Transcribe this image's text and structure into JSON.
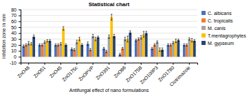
{
  "chart_data": {
    "type": "bar",
    "title": "Statistical chart",
    "x_label": "Antifungal effect of nano formulations",
    "y_label": "inhibition zone in mm",
    "categories": [
      "ZnO48",
      "ZnO51",
      "ZnO45",
      "ZnO175c",
      "ZnOPVP",
      "ZnO391",
      "ZnO86",
      "ZnO175B",
      "ZnO109P3",
      "ZnO1780",
      "Clotrimazole"
    ],
    "series": [
      {
        "name": "C. albicans",
        "color": "#4472C4",
        "values": [
          18,
          20,
          20,
          13,
          22,
          14,
          4,
          28,
          14,
          20,
          20
        ],
        "errors": [
          2,
          2,
          2,
          2,
          3,
          2,
          2,
          2,
          2,
          2,
          2
        ]
      },
      {
        "name": "C. tropicalis",
        "color": "#ED7D31",
        "values": [
          20,
          20,
          20,
          12,
          12,
          9,
          14,
          30,
          20,
          20,
          20
        ],
        "errors": [
          2,
          2,
          2,
          2,
          2,
          2,
          2,
          2,
          2,
          2,
          2
        ]
      },
      {
        "name": "M. canis",
        "color": "#A5A5A5",
        "values": [
          23,
          25,
          22,
          25,
          35,
          34,
          30,
          33,
          25,
          24,
          30
        ],
        "errors": [
          3,
          2,
          2,
          3,
          3,
          3,
          3,
          3,
          2,
          2,
          2
        ]
      },
      {
        "name": "T.mentagrophytes",
        "color": "#FFC000",
        "values": [
          22,
          27,
          48,
          30,
          30,
          67,
          30,
          38,
          12,
          27,
          28
        ],
        "errors": [
          2,
          2,
          3,
          3,
          3,
          5,
          5,
          5,
          3,
          3,
          3
        ]
      },
      {
        "name": "M. gypseum",
        "color": "#264478",
        "values": [
          34,
          27,
          20,
          20,
          33,
          35,
          41,
          40,
          12,
          28,
          27
        ],
        "errors": [
          3,
          2,
          2,
          2,
          2,
          3,
          3,
          3,
          3,
          2,
          2
        ]
      }
    ],
    "ylim": [
      -10,
      80
    ],
    "yticks": [
      -10,
      0,
      10,
      20,
      30,
      40,
      50,
      60,
      70,
      80
    ],
    "grid": true,
    "legend": "right"
  }
}
